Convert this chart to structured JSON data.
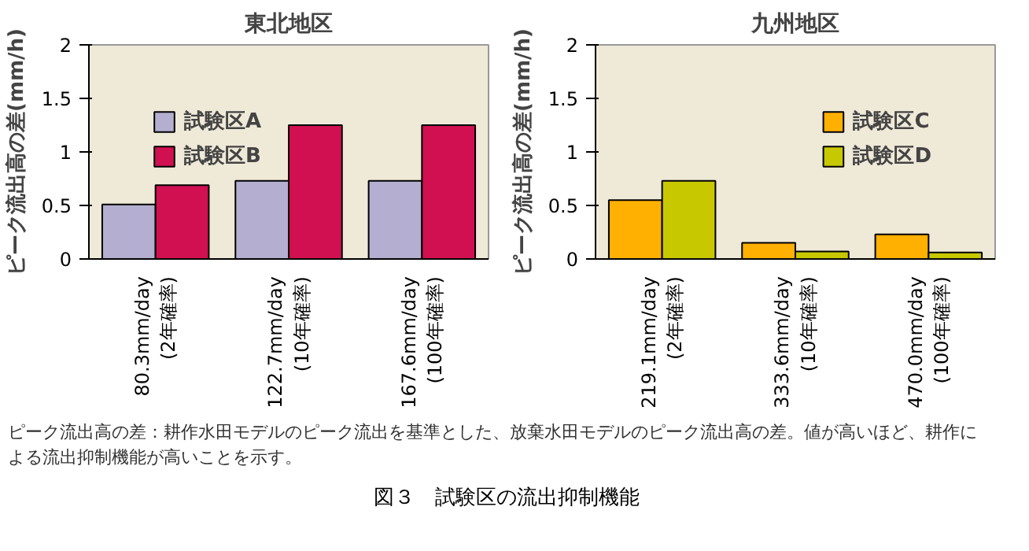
{
  "chart_data": [
    {
      "type": "bar",
      "title": "東北地区",
      "ylabel": "ピーク流出高の差(mm/h)",
      "categories": [
        "80.3mm/day\n(2年確率)",
        "122.7mm/day\n(10年確率)",
        "167.6mm/day\n(100年確率)"
      ],
      "series": [
        {
          "name": "試験区A",
          "color": "#b4aed0",
          "values": [
            0.51,
            0.73,
            0.73
          ]
        },
        {
          "name": "試験区B",
          "color": "#d01050",
          "values": [
            0.69,
            1.25,
            1.25
          ]
        }
      ],
      "ylim": [
        0,
        2
      ],
      "yticks": [
        0,
        0.5,
        1,
        1.5,
        2
      ],
      "legend": "top left",
      "grid": false
    },
    {
      "type": "bar",
      "title": "九州地区",
      "ylabel": "ピーク流出高の差(mm/h)",
      "categories": [
        "219.1mm/day\n(2年確率)",
        "333.6mm/day\n(10年確率)",
        "470.0mm/day\n(100年確率)"
      ],
      "series": [
        {
          "name": "試験区C",
          "color": "#ffb000",
          "values": [
            0.55,
            0.15,
            0.23
          ]
        },
        {
          "name": "試験区D",
          "color": "#c8c800",
          "values": [
            0.73,
            0.07,
            0.06
          ]
        }
      ],
      "ylim": [
        0,
        2
      ],
      "yticks": [
        0,
        0.5,
        1,
        1.5,
        2
      ],
      "legend": "top right",
      "grid": false
    },
    {
      "type": "other",
      "title": "図３　試験区の流出抑制機能",
      "annotations": [
        "ピーク流出高の差：耕作水田モデルのピーク流出を基準とした、放棄水田モデルのピーク流出高の差。値が高いほど、耕作による流出抑制機能が高いことを示す。"
      ]
    }
  ]
}
